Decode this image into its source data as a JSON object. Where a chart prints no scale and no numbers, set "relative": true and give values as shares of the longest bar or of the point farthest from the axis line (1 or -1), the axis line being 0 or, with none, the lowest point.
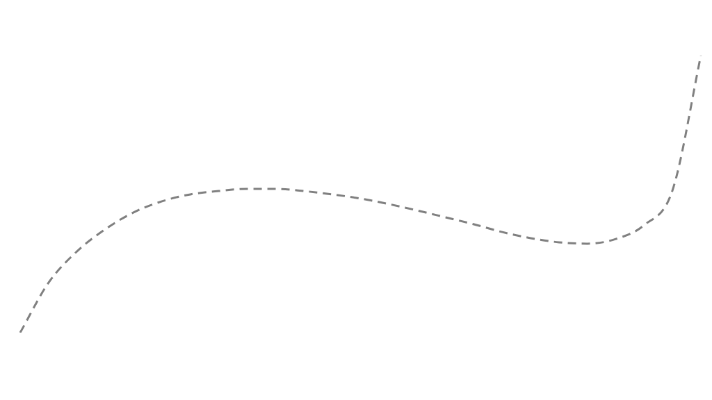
{
  "chart_data": {
    "type": "line",
    "relative": true,
    "categories": [
      null,
      null,
      null,
      null,
      null,
      null,
      null,
      null,
      null,
      null,
      null,
      null,
      null,
      null,
      null,
      null,
      null,
      null,
      null,
      null,
      null,
      null,
      null,
      null,
      null
    ],
    "series": [
      {
        "color": "#808080",
        "values": [
          0,
          0.18,
          0.293,
          0.373,
          0.434,
          0.474,
          0.499,
          0.511,
          0.519,
          0.519,
          0.511,
          0.499,
          0.484,
          0.464,
          0.441,
          0.416,
          0.391,
          0.363,
          0.341,
          0.326,
          0.321,
          0.338,
          0.388,
          0.514,
          1
        ]
      }
    ],
    "line_style": "dashed",
    "marker": "none",
    "legend": false
  }
}
